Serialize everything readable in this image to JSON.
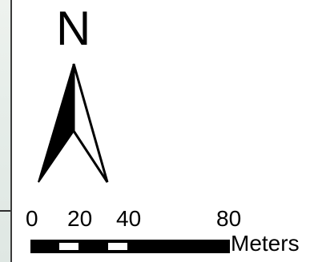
{
  "north_arrow": {
    "letter": "N",
    "icon": "north-arrow-icon"
  },
  "scale_bar": {
    "labels": [
      "0",
      "20",
      "40",
      "80"
    ],
    "units": "Meters"
  },
  "colors": {
    "ink": "#000000",
    "background": "#ffffff"
  }
}
